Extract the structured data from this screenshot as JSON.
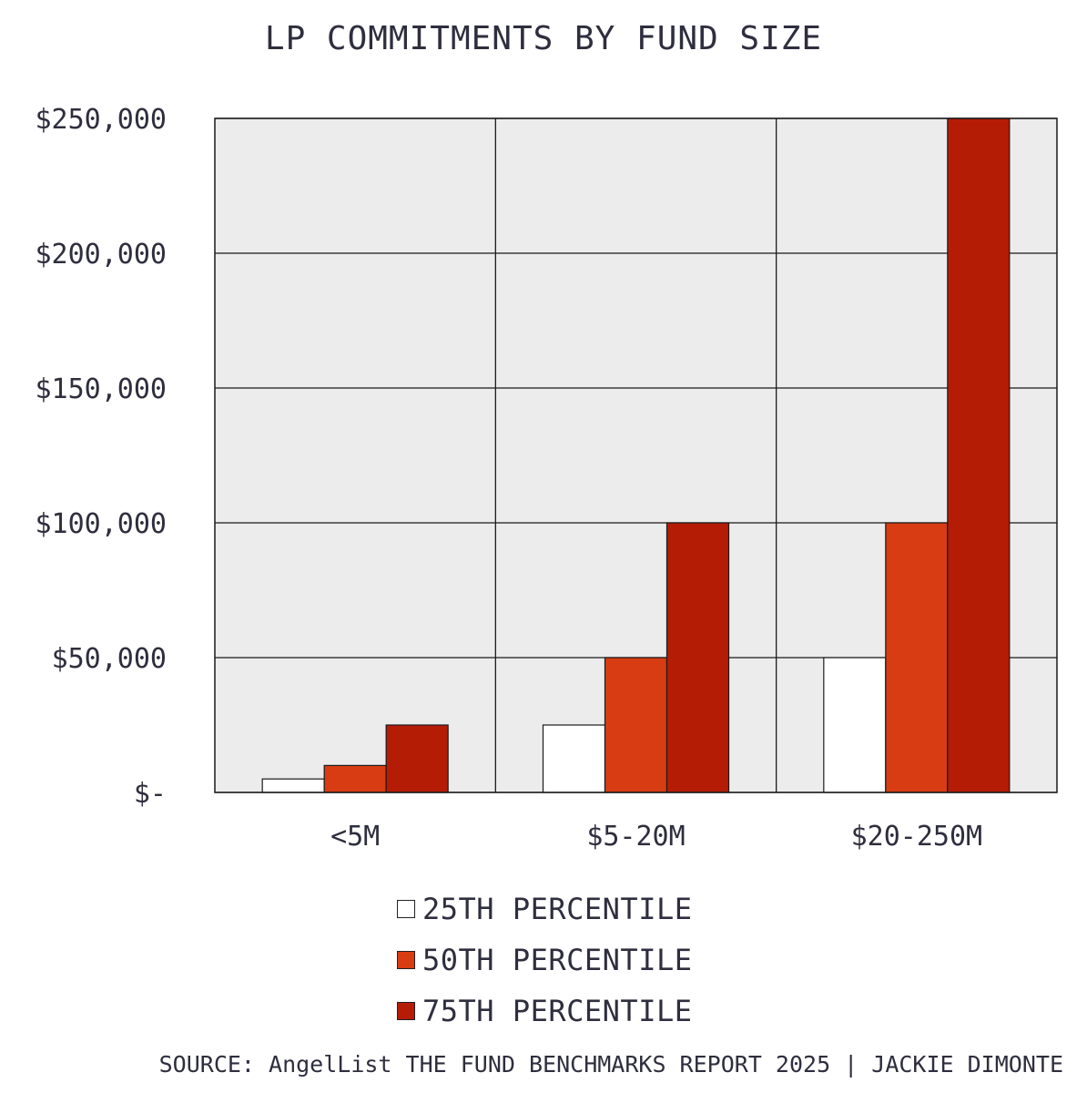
{
  "chart_data": {
    "type": "bar",
    "title": "LP COMMITMENTS BY FUND SIZE",
    "categories": [
      "<5M",
      "$5-20M",
      "$20-250M"
    ],
    "series": [
      {
        "name": "25TH PERCENTILE",
        "color": "#ffffff",
        "values": [
          5000,
          25000,
          50000
        ]
      },
      {
        "name": "50TH PERCENTILE",
        "color": "#d83c12",
        "values": [
          10000,
          50000,
          100000
        ]
      },
      {
        "name": "75TH PERCENTILE",
        "color": "#b51c06",
        "values": [
          25000,
          100000,
          250000
        ]
      }
    ],
    "ylim": [
      0,
      250000
    ],
    "yticks": [
      0,
      50000,
      100000,
      150000,
      200000,
      250000
    ],
    "ytick_labels": [
      "$-",
      "$50,000",
      "$100,000",
      "$150,000",
      "$200,000",
      "$250,000"
    ],
    "xlabel": "",
    "ylabel": "",
    "grid": true,
    "background": "#ececec",
    "legend_position": "bottom"
  },
  "source": "SOURCE: AngelList THE FUND BENCHMARKS REPORT 2025 | JACKIE DIMONTE"
}
